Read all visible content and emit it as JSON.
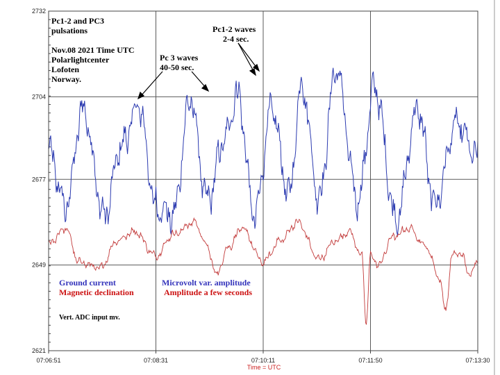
{
  "chart_data": {
    "type": "line",
    "title_lines": [
      "Pc1-2 and PC3",
      "pulsations"
    ],
    "info_lines": [
      "Nov.08 2021 Time UTC",
      "Polarlightcenter",
      "Lofoten",
      "Norway."
    ],
    "xlabel": "Time = UTC",
    "x_ticks": [
      "07:06:51",
      "07:08:31",
      "07:10:11",
      "07:11:50",
      "07:13:30"
    ],
    "y_ticks": [
      2621,
      2649,
      2677,
      2704,
      2732
    ],
    "ylim": [
      2621,
      2732
    ],
    "grid": true,
    "colors": {
      "blue": "#2b3ab0",
      "red": "#c23a3a",
      "grid": "#5a5a5a",
      "axis": "#444444"
    },
    "series": [
      {
        "name": "Ground current",
        "color": "#2b3ab0",
        "x": [
          0,
          0.04,
          0.08,
          0.13,
          0.17,
          0.21,
          0.25,
          0.29,
          0.33,
          0.37,
          0.41,
          0.44,
          0.48,
          0.52,
          0.56,
          0.59,
          0.63,
          0.67,
          0.72,
          0.76,
          0.81,
          0.86,
          0.9,
          0.95,
          1.0
        ],
        "values": [
          2686,
          2668,
          2700,
          2665,
          2688,
          2701,
          2668,
          2665,
          2703,
          2670,
          2690,
          2705,
          2665,
          2700,
          2672,
          2708,
          2671,
          2713,
          2670,
          2707,
          2664,
          2700,
          2669,
          2695,
          2684
        ],
        "wiggle": 5
      },
      {
        "name": "Magnetic declination",
        "color": "#c23a3a",
        "x": [
          0,
          0.04,
          0.07,
          0.12,
          0.16,
          0.2,
          0.25,
          0.29,
          0.34,
          0.37,
          0.39,
          0.42,
          0.45,
          0.5,
          0.54,
          0.58,
          0.63,
          0.67,
          0.7,
          0.73,
          0.74,
          0.75,
          0.77,
          0.8,
          0.84,
          0.88,
          0.91,
          0.925,
          0.94,
          0.96,
          0.98,
          1.0
        ],
        "values": [
          2656,
          2661,
          2650,
          2648,
          2657,
          2660,
          2652,
          2659,
          2663,
          2655,
          2646,
          2655,
          2661,
          2650,
          2657,
          2663,
          2651,
          2657,
          2660,
          2652,
          2630,
          2652,
          2649,
          2658,
          2661,
          2655,
          2645,
          2634,
          2652,
          2653,
          2646,
          2650
        ],
        "wiggle": 1.2
      }
    ],
    "legend": {
      "blue": [
        "Ground current",
        "Microvolt var. amplitude"
      ],
      "red": [
        "Magnetic declination",
        "Amplitude a few seconds"
      ]
    },
    "annotations": [
      {
        "lines": [
          "Pc 3 waves",
          "40-50 sec."
        ]
      },
      {
        "lines": [
          "Pc1-2 waves",
          "2-4 sec."
        ]
      }
    ],
    "note": "Vert. ADC input mv."
  }
}
